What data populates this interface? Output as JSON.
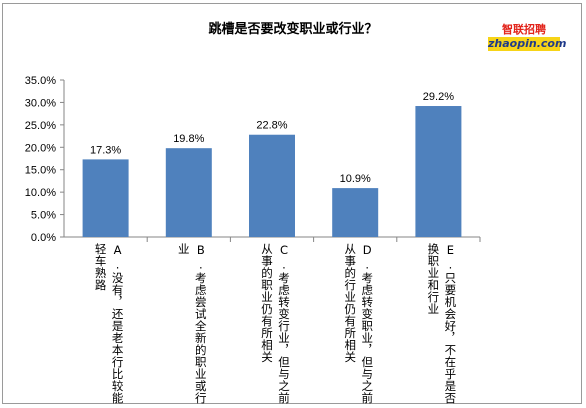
{
  "chart_data": {
    "type": "bar",
    "title": "跳槽是否要改变职业或行业？",
    "categories": [
      "A.没有，还是老本行比较能轻车熟路",
      "B.考虑尝试全新的职业或行业",
      "C.考虑转变行业，但与之前从事的职业仍有所相关",
      "D.考虑转变职业，但与之前从事的行业仍有所相关",
      "E.只要机会好，不在乎是否换职业和行业"
    ],
    "category_lines": [
      [
        "A.没有，还是老本行比较能",
        "轻车熟路"
      ],
      [
        "B.考虑尝试全新的职业或行",
        "业"
      ],
      [
        "C.考虑转变行业，但与之前",
        "从事的职业仍有所相关"
      ],
      [
        "D.考虑转变职业，但与之前",
        "从事的行业仍有所相关"
      ],
      [
        "E.只要机会好，不在乎是否",
        "换职业和行业"
      ]
    ],
    "values": [
      17.3,
      19.8,
      22.8,
      10.9,
      29.2
    ],
    "value_labels": [
      "17.3%",
      "19.8%",
      "22.8%",
      "10.9%",
      "29.2%"
    ],
    "ylim": [
      0,
      35
    ],
    "yticks": [
      "0.0%",
      "5.0%",
      "10.0%",
      "15.0%",
      "20.0%",
      "25.0%",
      "30.0%",
      "35.0%"
    ],
    "ytick_values": [
      0,
      5,
      10,
      15,
      20,
      25,
      30,
      35
    ],
    "bar_color": "#4f81bd",
    "grid": false,
    "xlabel": "",
    "ylabel": ""
  },
  "logo": {
    "top_text": "智联招聘",
    "bottom_text": "zhaopin.com"
  }
}
